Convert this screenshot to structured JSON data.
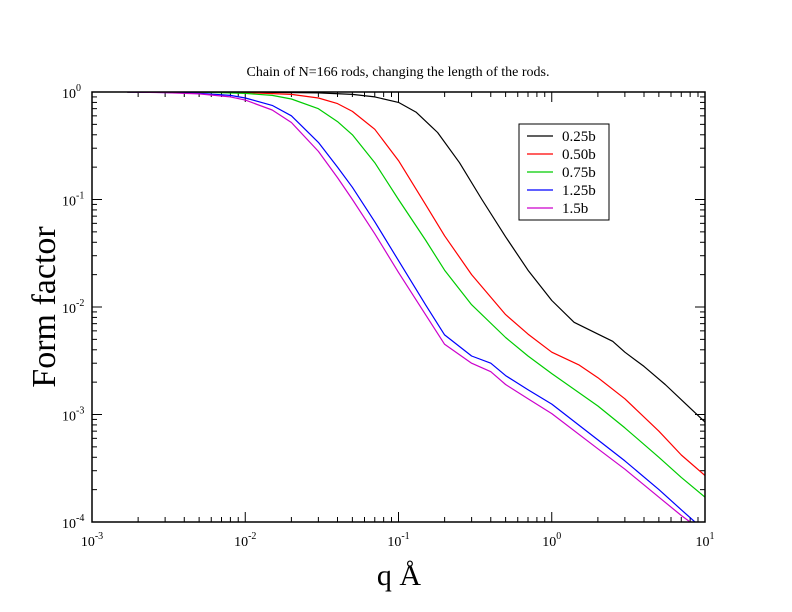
{
  "chart_data": {
    "type": "line",
    "title": "Chain of N=166 rods, changing the length of the rods.",
    "xlabel": "q Å",
    "ylabel": "Form factor",
    "xscale": "log",
    "yscale": "log",
    "xlim": [
      0.001,
      10
    ],
    "ylim": [
      0.0001,
      1
    ],
    "grid": false,
    "legend_position": "top-right",
    "x_ticks": [
      {
        "value": 0.001,
        "base": "10",
        "exp": "-3"
      },
      {
        "value": 0.01,
        "base": "10",
        "exp": "-2"
      },
      {
        "value": 0.1,
        "base": "10",
        "exp": "-1"
      },
      {
        "value": 1,
        "base": "10",
        "exp": "0"
      },
      {
        "value": 10,
        "base": "10",
        "exp": "1"
      }
    ],
    "y_ticks": [
      {
        "value": 0.0001,
        "base": "10",
        "exp": "-4"
      },
      {
        "value": 0.001,
        "base": "10",
        "exp": "-3"
      },
      {
        "value": 0.01,
        "base": "10",
        "exp": "-2"
      },
      {
        "value": 0.1,
        "base": "10",
        "exp": "-1"
      },
      {
        "value": 1,
        "base": "10",
        "exp": "0"
      }
    ],
    "series": [
      {
        "name": "0.25b",
        "color": "#000000",
        "points": [
          [
            0.0017,
            1.0
          ],
          [
            0.01,
            0.998
          ],
          [
            0.03,
            0.98
          ],
          [
            0.05,
            0.95
          ],
          [
            0.07,
            0.9
          ],
          [
            0.1,
            0.8
          ],
          [
            0.13,
            0.65
          ],
          [
            0.18,
            0.42
          ],
          [
            0.25,
            0.22
          ],
          [
            0.35,
            0.1
          ],
          [
            0.5,
            0.045
          ],
          [
            0.7,
            0.022
          ],
          [
            1.0,
            0.0115
          ],
          [
            1.4,
            0.0072
          ],
          [
            2.0,
            0.0056
          ],
          [
            2.5,
            0.0048
          ],
          [
            3.0,
            0.0038
          ],
          [
            4.0,
            0.0028
          ],
          [
            5.5,
            0.0019
          ],
          [
            7.5,
            0.00125
          ],
          [
            10,
            0.00085
          ]
        ]
      },
      {
        "name": "0.50b",
        "color": "#ff0000",
        "points": [
          [
            0.0017,
            1.0
          ],
          [
            0.005,
            0.998
          ],
          [
            0.01,
            0.99
          ],
          [
            0.02,
            0.95
          ],
          [
            0.03,
            0.88
          ],
          [
            0.04,
            0.78
          ],
          [
            0.05,
            0.66
          ],
          [
            0.07,
            0.45
          ],
          [
            0.1,
            0.23
          ],
          [
            0.15,
            0.09
          ],
          [
            0.2,
            0.046
          ],
          [
            0.3,
            0.02
          ],
          [
            0.5,
            0.0085
          ],
          [
            0.7,
            0.0056
          ],
          [
            1.0,
            0.0038
          ],
          [
            1.5,
            0.0029
          ],
          [
            2.0,
            0.0022
          ],
          [
            3.0,
            0.0014
          ],
          [
            5.0,
            0.0007
          ],
          [
            7.0,
            0.00042
          ],
          [
            10,
            0.00027
          ]
        ]
      },
      {
        "name": "0.75b",
        "color": "#00cc00",
        "points": [
          [
            0.0017,
            1.0
          ],
          [
            0.005,
            0.995
          ],
          [
            0.01,
            0.97
          ],
          [
            0.015,
            0.93
          ],
          [
            0.02,
            0.86
          ],
          [
            0.03,
            0.7
          ],
          [
            0.04,
            0.53
          ],
          [
            0.05,
            0.4
          ],
          [
            0.07,
            0.22
          ],
          [
            0.1,
            0.1
          ],
          [
            0.15,
            0.042
          ],
          [
            0.2,
            0.022
          ],
          [
            0.3,
            0.0105
          ],
          [
            0.5,
            0.0052
          ],
          [
            0.7,
            0.0035
          ],
          [
            1.0,
            0.0024
          ],
          [
            2.0,
            0.0012
          ],
          [
            3.0,
            0.00075
          ],
          [
            5.0,
            0.0004
          ],
          [
            7.0,
            0.00026
          ],
          [
            10,
            0.00017
          ]
        ]
      },
      {
        "name": "1.25b",
        "color": "#0000ff",
        "points": [
          [
            0.0017,
            1.0
          ],
          [
            0.003,
            0.99
          ],
          [
            0.005,
            0.97
          ],
          [
            0.008,
            0.93
          ],
          [
            0.01,
            0.88
          ],
          [
            0.015,
            0.75
          ],
          [
            0.02,
            0.6
          ],
          [
            0.03,
            0.34
          ],
          [
            0.04,
            0.2
          ],
          [
            0.05,
            0.13
          ],
          [
            0.07,
            0.062
          ],
          [
            0.1,
            0.027
          ],
          [
            0.15,
            0.0105
          ],
          [
            0.2,
            0.0055
          ],
          [
            0.3,
            0.0035
          ],
          [
            0.4,
            0.003
          ],
          [
            0.5,
            0.0023
          ],
          [
            0.7,
            0.0017
          ],
          [
            1.0,
            0.00125
          ],
          [
            2.0,
            0.00058
          ],
          [
            3.0,
            0.00037
          ],
          [
            5.0,
            0.0002
          ],
          [
            7.0,
            0.00013
          ],
          [
            8.6,
            0.0001
          ]
        ]
      },
      {
        "name": "1.5b",
        "color": "#cc00cc",
        "points": [
          [
            0.0017,
            1.0
          ],
          [
            0.003,
            0.985
          ],
          [
            0.005,
            0.96
          ],
          [
            0.008,
            0.9
          ],
          [
            0.01,
            0.84
          ],
          [
            0.015,
            0.68
          ],
          [
            0.02,
            0.52
          ],
          [
            0.03,
            0.28
          ],
          [
            0.04,
            0.16
          ],
          [
            0.05,
            0.1
          ],
          [
            0.07,
            0.048
          ],
          [
            0.1,
            0.021
          ],
          [
            0.15,
            0.0085
          ],
          [
            0.2,
            0.0045
          ],
          [
            0.3,
            0.003
          ],
          [
            0.4,
            0.0025
          ],
          [
            0.5,
            0.0019
          ],
          [
            0.7,
            0.0014
          ],
          [
            1.0,
            0.00102
          ],
          [
            2.0,
            0.00048
          ],
          [
            3.0,
            0.00031
          ],
          [
            5.0,
            0.00017
          ],
          [
            7.0,
            0.000115
          ],
          [
            8.0,
            0.0001
          ]
        ]
      }
    ]
  }
}
